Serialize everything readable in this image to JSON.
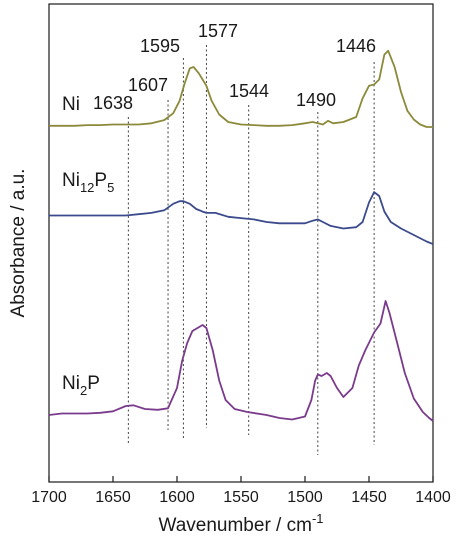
{
  "chart_data": {
    "type": "line",
    "xlabel": "Wavenumber / cm",
    "xlabel_sup": "-1",
    "ylabel": "Absorbance / a.u.",
    "xlim": [
      1700,
      1400
    ],
    "x_reversed": true,
    "x_ticks": [
      "1700",
      "1650",
      "1600",
      "1550",
      "1500",
      "1450",
      "1400"
    ],
    "y_ticks_shown": false,
    "grid": false,
    "series": [
      {
        "name": "Ni",
        "color": "#8c8a3a",
        "points": [
          [
            1700,
            0.13
          ],
          [
            1690,
            0.13
          ],
          [
            1680,
            0.13
          ],
          [
            1670,
            0.135
          ],
          [
            1660,
            0.135
          ],
          [
            1650,
            0.14
          ],
          [
            1640,
            0.14
          ],
          [
            1630,
            0.14
          ],
          [
            1620,
            0.15
          ],
          [
            1610,
            0.175
          ],
          [
            1603,
            0.23
          ],
          [
            1598,
            0.33
          ],
          [
            1594,
            0.47
          ],
          [
            1590,
            0.59
          ],
          [
            1587,
            0.6
          ],
          [
            1583,
            0.55
          ],
          [
            1580,
            0.5
          ],
          [
            1577,
            0.45
          ],
          [
            1573,
            0.33
          ],
          [
            1567,
            0.22
          ],
          [
            1560,
            0.16
          ],
          [
            1550,
            0.14
          ],
          [
            1540,
            0.135
          ],
          [
            1530,
            0.13
          ],
          [
            1520,
            0.13
          ],
          [
            1510,
            0.135
          ],
          [
            1500,
            0.15
          ],
          [
            1494,
            0.16
          ],
          [
            1490,
            0.15
          ],
          [
            1486,
            0.14
          ],
          [
            1482,
            0.17
          ],
          [
            1478,
            0.15
          ],
          [
            1470,
            0.16
          ],
          [
            1460,
            0.2
          ],
          [
            1455,
            0.35
          ],
          [
            1450,
            0.45
          ],
          [
            1446,
            0.46
          ],
          [
            1442,
            0.5
          ],
          [
            1438,
            0.7
          ],
          [
            1435,
            0.73
          ],
          [
            1430,
            0.6
          ],
          [
            1425,
            0.4
          ],
          [
            1420,
            0.25
          ],
          [
            1415,
            0.18
          ],
          [
            1410,
            0.14
          ],
          [
            1405,
            0.12
          ],
          [
            1400,
            0.12
          ]
        ]
      },
      {
        "name": "Ni12P5",
        "color": "#3b4a8c",
        "points": [
          [
            1700,
            0.15
          ],
          [
            1690,
            0.15
          ],
          [
            1680,
            0.15
          ],
          [
            1670,
            0.15
          ],
          [
            1660,
            0.15
          ],
          [
            1650,
            0.15
          ],
          [
            1640,
            0.15
          ],
          [
            1630,
            0.16
          ],
          [
            1620,
            0.17
          ],
          [
            1610,
            0.19
          ],
          [
            1603,
            0.24
          ],
          [
            1598,
            0.26
          ],
          [
            1595,
            0.26
          ],
          [
            1590,
            0.24
          ],
          [
            1585,
            0.2
          ],
          [
            1580,
            0.18
          ],
          [
            1577,
            0.17
          ],
          [
            1570,
            0.17
          ],
          [
            1560,
            0.14
          ],
          [
            1550,
            0.13
          ],
          [
            1540,
            0.12
          ],
          [
            1530,
            0.1
          ],
          [
            1520,
            0.09
          ],
          [
            1510,
            0.09
          ],
          [
            1500,
            0.09
          ],
          [
            1494,
            0.11
          ],
          [
            1490,
            0.12
          ],
          [
            1486,
            0.1
          ],
          [
            1480,
            0.07
          ],
          [
            1470,
            0.05
          ],
          [
            1460,
            0.06
          ],
          [
            1455,
            0.1
          ],
          [
            1450,
            0.25
          ],
          [
            1446,
            0.33
          ],
          [
            1442,
            0.3
          ],
          [
            1438,
            0.18
          ],
          [
            1433,
            0.1
          ],
          [
            1425,
            0.05
          ],
          [
            1415,
            0.0
          ],
          [
            1405,
            -0.05
          ],
          [
            1400,
            -0.07
          ]
        ]
      },
      {
        "name": "Ni2P",
        "color": "#7a3b8c",
        "points": [
          [
            1700,
            0.02
          ],
          [
            1690,
            0.03
          ],
          [
            1680,
            0.03
          ],
          [
            1670,
            0.03
          ],
          [
            1660,
            0.035
          ],
          [
            1650,
            0.045
          ],
          [
            1640,
            0.08
          ],
          [
            1634,
            0.085
          ],
          [
            1625,
            0.06
          ],
          [
            1615,
            0.055
          ],
          [
            1607,
            0.065
          ],
          [
            1600,
            0.2
          ],
          [
            1596,
            0.38
          ],
          [
            1592,
            0.5
          ],
          [
            1588,
            0.58
          ],
          [
            1584,
            0.6
          ],
          [
            1580,
            0.62
          ],
          [
            1577,
            0.6
          ],
          [
            1572,
            0.45
          ],
          [
            1567,
            0.25
          ],
          [
            1562,
            0.12
          ],
          [
            1555,
            0.06
          ],
          [
            1545,
            0.04
          ],
          [
            1530,
            0.02
          ],
          [
            1520,
            0.0
          ],
          [
            1510,
            -0.01
          ],
          [
            1500,
            0.01
          ],
          [
            1495,
            0.12
          ],
          [
            1492,
            0.25
          ],
          [
            1490,
            0.29
          ],
          [
            1487,
            0.28
          ],
          [
            1483,
            0.3
          ],
          [
            1480,
            0.28
          ],
          [
            1475,
            0.2
          ],
          [
            1470,
            0.14
          ],
          [
            1463,
            0.2
          ],
          [
            1458,
            0.35
          ],
          [
            1453,
            0.45
          ],
          [
            1446,
            0.57
          ],
          [
            1441,
            0.63
          ],
          [
            1437,
            0.78
          ],
          [
            1434,
            0.7
          ],
          [
            1428,
            0.5
          ],
          [
            1422,
            0.3
          ],
          [
            1415,
            0.13
          ],
          [
            1408,
            0.04
          ],
          [
            1403,
            0.0
          ],
          [
            1400,
            -0.02
          ]
        ]
      }
    ],
    "series_labels": [
      {
        "main": "Ni",
        "sub1": "",
        "after1": "",
        "sub2": ""
      },
      {
        "main": "Ni",
        "sub1": "12",
        "after1": "P",
        "sub2": "5"
      },
      {
        "main": "Ni",
        "sub1": "2",
        "after1": "P",
        "sub2": ""
      }
    ],
    "peak_markers": [
      {
        "label": "1638",
        "x": 1638
      },
      {
        "label": "1607",
        "x": 1607
      },
      {
        "label": "1595",
        "x": 1595
      },
      {
        "label": "1577",
        "x": 1577
      },
      {
        "label": "1544",
        "x": 1544
      },
      {
        "label": "1490",
        "x": 1490
      },
      {
        "label": "1446",
        "x": 1446
      }
    ]
  }
}
